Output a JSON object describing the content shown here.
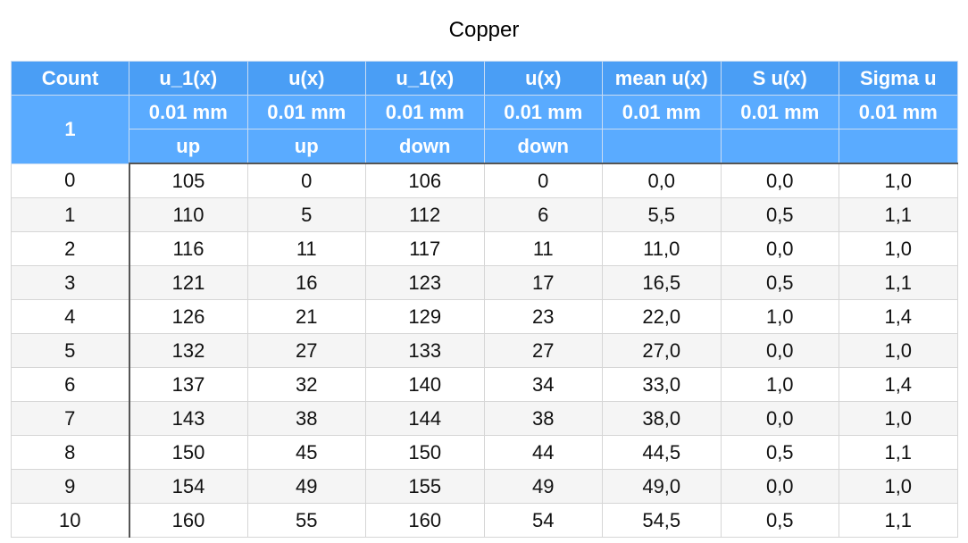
{
  "title": "Copper",
  "table": {
    "count_label": "Count",
    "count_value": "1",
    "columns": [
      {
        "name": "u_1(x)",
        "unit": "0.01 mm",
        "dir": "up"
      },
      {
        "name": "u(x)",
        "unit": "0.01 mm",
        "dir": "up"
      },
      {
        "name": "u_1(x)",
        "unit": "0.01 mm",
        "dir": "down"
      },
      {
        "name": "u(x)",
        "unit": "0.01 mm",
        "dir": "down"
      },
      {
        "name": "mean u(x)",
        "unit": "0.01 mm",
        "dir": ""
      },
      {
        "name": "S u(x)",
        "unit": "0.01 mm",
        "dir": ""
      },
      {
        "name": "Sigma u",
        "unit": "0.01 mm",
        "dir": ""
      }
    ],
    "rows": [
      [
        "0",
        "105",
        "0",
        "106",
        "0",
        "0,0",
        "0,0",
        "1,0"
      ],
      [
        "1",
        "110",
        "5",
        "112",
        "6",
        "5,5",
        "0,5",
        "1,1"
      ],
      [
        "2",
        "116",
        "11",
        "117",
        "11",
        "11,0",
        "0,0",
        "1,0"
      ],
      [
        "3",
        "121",
        "16",
        "123",
        "17",
        "16,5",
        "0,5",
        "1,1"
      ],
      [
        "4",
        "126",
        "21",
        "129",
        "23",
        "22,0",
        "1,0",
        "1,4"
      ],
      [
        "5",
        "132",
        "27",
        "133",
        "27",
        "27,0",
        "0,0",
        "1,0"
      ],
      [
        "6",
        "137",
        "32",
        "140",
        "34",
        "33,0",
        "1,0",
        "1,4"
      ],
      [
        "7",
        "143",
        "38",
        "144",
        "38",
        "38,0",
        "0,0",
        "1,0"
      ],
      [
        "8",
        "150",
        "45",
        "150",
        "44",
        "44,5",
        "0,5",
        "1,1"
      ],
      [
        "9",
        "154",
        "49",
        "155",
        "49",
        "49,0",
        "0,0",
        "1,0"
      ],
      [
        "10",
        "160",
        "55",
        "160",
        "54",
        "54,5",
        "0,5",
        "1,1"
      ]
    ]
  },
  "colors": {
    "header_blue": "#4a9ef5",
    "header_blue_light": "#5aabff",
    "row_alt": "#f5f5f5"
  }
}
